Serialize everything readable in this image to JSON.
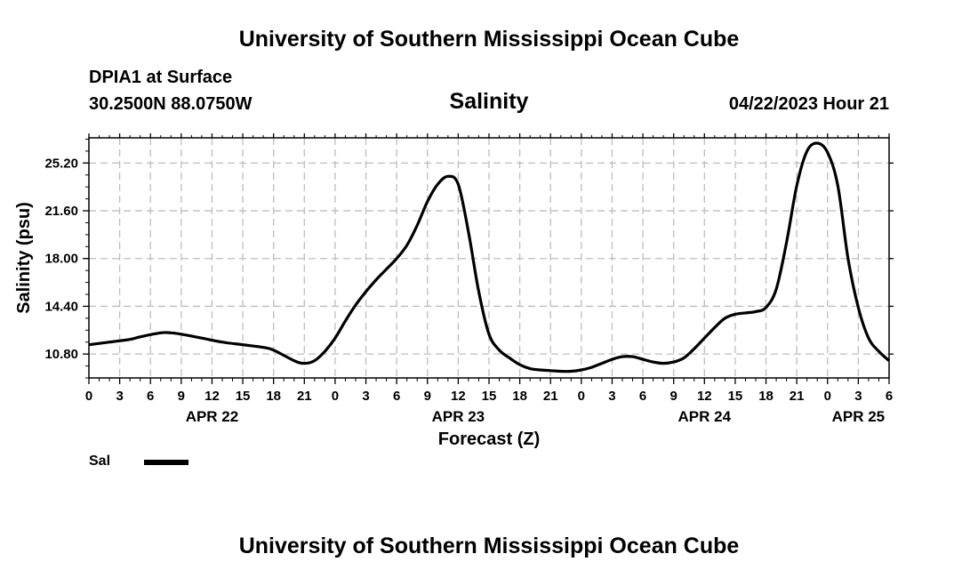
{
  "header": {
    "org_title": "University of Southern Mississippi Ocean Cube",
    "station": "DPIA1 at Surface",
    "coords": "30.2500N  88.0750W",
    "datetime": "04/22/2023 Hour 21"
  },
  "footer": {
    "org_title": "University of Southern Mississippi Ocean Cube"
  },
  "chart_data": {
    "type": "line",
    "title": "Salinity",
    "xlabel": "Forecast (Z)",
    "ylabel": "Salinity (psu)",
    "xlim": [
      0,
      78
    ],
    "ylim": [
      9.0,
      27.1
    ],
    "grid": true,
    "x_ticks": [
      {
        "h": 0,
        "label": "0"
      },
      {
        "h": 3,
        "label": "3"
      },
      {
        "h": 6,
        "label": "6"
      },
      {
        "h": 9,
        "label": "9"
      },
      {
        "h": 12,
        "label": "12"
      },
      {
        "h": 15,
        "label": "15"
      },
      {
        "h": 18,
        "label": "18"
      },
      {
        "h": 21,
        "label": "21"
      },
      {
        "h": 24,
        "label": "0"
      },
      {
        "h": 27,
        "label": "3"
      },
      {
        "h": 30,
        "label": "6"
      },
      {
        "h": 33,
        "label": "9"
      },
      {
        "h": 36,
        "label": "12"
      },
      {
        "h": 39,
        "label": "15"
      },
      {
        "h": 42,
        "label": "18"
      },
      {
        "h": 45,
        "label": "21"
      },
      {
        "h": 48,
        "label": "0"
      },
      {
        "h": 51,
        "label": "3"
      },
      {
        "h": 54,
        "label": "6"
      },
      {
        "h": 57,
        "label": "9"
      },
      {
        "h": 60,
        "label": "12"
      },
      {
        "h": 63,
        "label": "15"
      },
      {
        "h": 66,
        "label": "18"
      },
      {
        "h": 69,
        "label": "21"
      },
      {
        "h": 72,
        "label": "0"
      },
      {
        "h": 75,
        "label": "3"
      },
      {
        "h": 78,
        "label": "6"
      }
    ],
    "y_ticks": [
      {
        "v": 10.8,
        "label": "10.80"
      },
      {
        "v": 14.4,
        "label": "14.40"
      },
      {
        "v": 18.0,
        "label": "18.00"
      },
      {
        "v": 21.6,
        "label": "21.60"
      },
      {
        "v": 25.2,
        "label": "25.20"
      }
    ],
    "date_labels": [
      {
        "h": 12,
        "label": "APR 22"
      },
      {
        "h": 36,
        "label": "APR 23"
      },
      {
        "h": 60,
        "label": "APR 24"
      },
      {
        "h": 75,
        "label": "APR 25"
      }
    ],
    "legend": [
      {
        "name": "Sal",
        "color": "#000000"
      }
    ],
    "series": [
      {
        "name": "Sal",
        "x": [
          0,
          2,
          4,
          5,
          7,
          8,
          9,
          11,
          13,
          15,
          17,
          18,
          20,
          21,
          22,
          23,
          24,
          25,
          26,
          27,
          28,
          29,
          30,
          31,
          32,
          33,
          34,
          35,
          36,
          37,
          38,
          39,
          40,
          41,
          42,
          43,
          44,
          45,
          46,
          47,
          48,
          49,
          50,
          51,
          52,
          53,
          54,
          55,
          56,
          57,
          58,
          59,
          60,
          61,
          62,
          63,
          64,
          65,
          66,
          67,
          68,
          69,
          70,
          71,
          72,
          73,
          74,
          75,
          76,
          77,
          78
        ],
        "y": [
          11.5,
          11.7,
          11.9,
          12.1,
          12.4,
          12.4,
          12.3,
          12.0,
          11.7,
          11.5,
          11.3,
          11.1,
          10.3,
          10.1,
          10.3,
          11.0,
          12.0,
          13.3,
          14.5,
          15.5,
          16.4,
          17.2,
          18.0,
          19.0,
          20.5,
          22.3,
          23.6,
          24.2,
          23.6,
          20.0,
          15.5,
          12.3,
          11.1,
          10.5,
          10.0,
          9.7,
          9.6,
          9.55,
          9.5,
          9.5,
          9.6,
          9.8,
          10.1,
          10.4,
          10.6,
          10.6,
          10.4,
          10.2,
          10.1,
          10.2,
          10.5,
          11.2,
          12.0,
          12.8,
          13.5,
          13.8,
          13.9,
          14.0,
          14.3,
          15.7,
          19.2,
          23.5,
          26.1,
          26.7,
          26.0,
          23.5,
          18.0,
          14.3,
          12.0,
          11.0,
          10.3
        ]
      }
    ]
  }
}
